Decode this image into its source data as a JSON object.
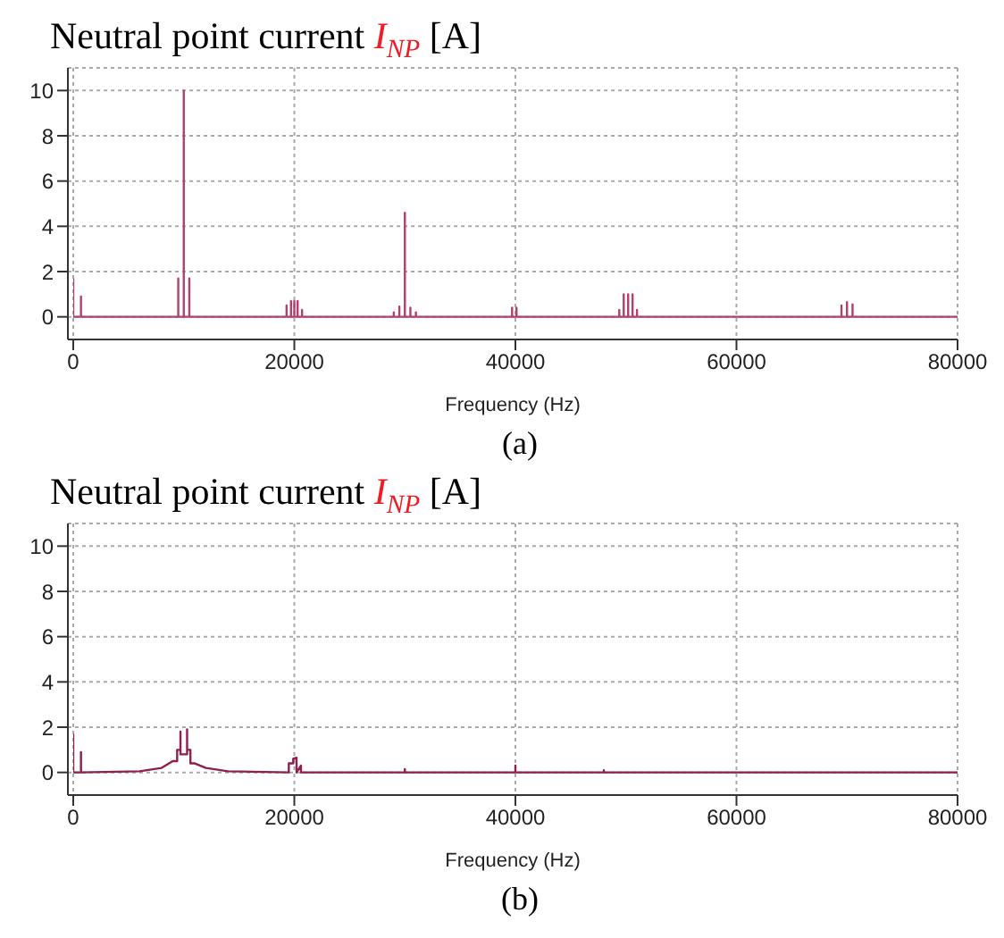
{
  "chart_data": [
    {
      "type": "line",
      "title": "Neutral point current I$_{NP}$ [A]",
      "xlabel": "Frequency (Hz)",
      "annotations": [
        "(a)"
      ],
      "xlim": [
        0,
        80000
      ],
      "xticks": [
        0,
        20000,
        40000,
        60000,
        80000
      ],
      "ylim": [
        -1,
        11
      ],
      "yticks": [
        0,
        2,
        4,
        6,
        8,
        10
      ],
      "grid": true,
      "line_style": "solid",
      "series": [
        {
          "color": "#b0406e",
          "x": [
            0,
            0,
            700,
            700,
            700,
            9500,
            9500,
            9500,
            10000,
            10000,
            10000,
            10500,
            10500,
            10500,
            19300,
            19300,
            19300,
            19700,
            19700,
            19700,
            20000,
            20000,
            20000,
            20300,
            20300,
            20300,
            20700,
            20700,
            20700,
            29000,
            29000,
            29000,
            29500,
            29500,
            29500,
            30000,
            30000,
            30000,
            30500,
            30500,
            30500,
            31000,
            31000,
            31000,
            39700,
            39700,
            39700,
            40100,
            40100,
            40100,
            49400,
            49400,
            49400,
            49800,
            49800,
            49800,
            50200,
            50200,
            50200,
            50600,
            50600,
            50600,
            51000,
            51000,
            51000,
            69500,
            69500,
            69500,
            70000,
            70000,
            70000,
            70500,
            70500,
            70500,
            80000
          ],
          "values": [
            1.7,
            0,
            0,
            0.9,
            0,
            0,
            1.7,
            0,
            0,
            10,
            0,
            0,
            1.7,
            0,
            0,
            0.5,
            0,
            0,
            0.7,
            0,
            0,
            0.7,
            0,
            0,
            0.7,
            0,
            0,
            0.3,
            0,
            0,
            0.2,
            0,
            0,
            0.45,
            0,
            0,
            4.6,
            0,
            0,
            0.4,
            0,
            0,
            0.2,
            0,
            0,
            0.4,
            0,
            0,
            0.4,
            0,
            0,
            0.3,
            0,
            0,
            1,
            0,
            0,
            1,
            0,
            0,
            1,
            0,
            0,
            0.3,
            0,
            0,
            0.5,
            0,
            0,
            0.65,
            0,
            0,
            0.55,
            0,
            0
          ]
        }
      ]
    },
    {
      "type": "line",
      "title": "Neutral point current I$_{NP}$ [A]",
      "xlabel": "Frequency (Hz)",
      "annotations": [
        "(b)"
      ],
      "xlim": [
        0,
        80000
      ],
      "xticks": [
        0,
        20000,
        40000,
        60000,
        80000
      ],
      "ylim": [
        -1,
        11
      ],
      "yticks": [
        0,
        2,
        4,
        6,
        8,
        10
      ],
      "grid": true,
      "line_style": "solid",
      "series": [
        {
          "color": "#8e1f4e",
          "x": [
            0,
            0,
            700,
            700,
            700,
            6000,
            8000,
            9000,
            9400,
            9400,
            9700,
            9700,
            9700,
            10000,
            10300,
            10300,
            10300,
            10600,
            10600,
            11000,
            12000,
            14000,
            19500,
            19500,
            19900,
            19900,
            19900,
            20200,
            20200,
            20200,
            20600,
            20600,
            30000,
            30000,
            30000,
            40000,
            40000,
            40000,
            48000,
            48000,
            48000,
            80000
          ],
          "values": [
            1.7,
            0,
            0,
            0.9,
            0,
            0.05,
            0.2,
            0.5,
            0.5,
            1,
            1,
            1.8,
            0.8,
            0.8,
            0.8,
            1.9,
            1,
            1,
            0.4,
            0.4,
            0.2,
            0.05,
            0,
            0.4,
            0.4,
            0.6,
            0.6,
            0.65,
            0.3,
            0,
            0.3,
            0,
            0,
            0.15,
            0,
            0,
            0.3,
            0,
            0,
            0.1,
            0,
            0
          ]
        }
      ]
    }
  ]
}
